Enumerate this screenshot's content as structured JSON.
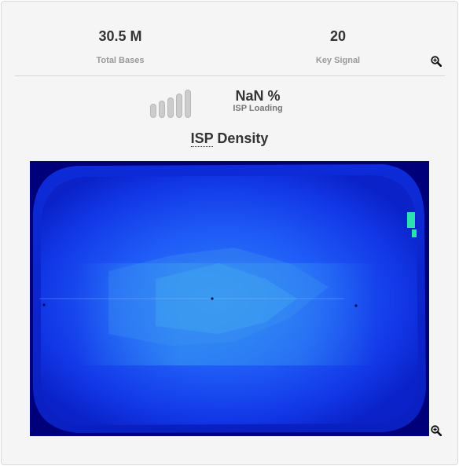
{
  "stats": {
    "total_bases": {
      "value": "30.5 M",
      "label": "Total Bases"
    },
    "key_signal": {
      "value": "20",
      "label": "Key Signal"
    }
  },
  "isp_loading": {
    "value": "NaN %",
    "label": "ISP Loading",
    "bars": 5
  },
  "isp_density": {
    "title_abbr": "ISP",
    "title_rest": " Density"
  },
  "icons": {
    "zoom": "zoom-in-icon"
  },
  "colors": {
    "background": "#00007a",
    "chip_dark": "#0a1fd0",
    "chip_mid": "#1f4cf5",
    "chip_light": "#2e7ff2",
    "chip_hot": "#2ee0c0",
    "bar_fill": "#cccccc"
  }
}
